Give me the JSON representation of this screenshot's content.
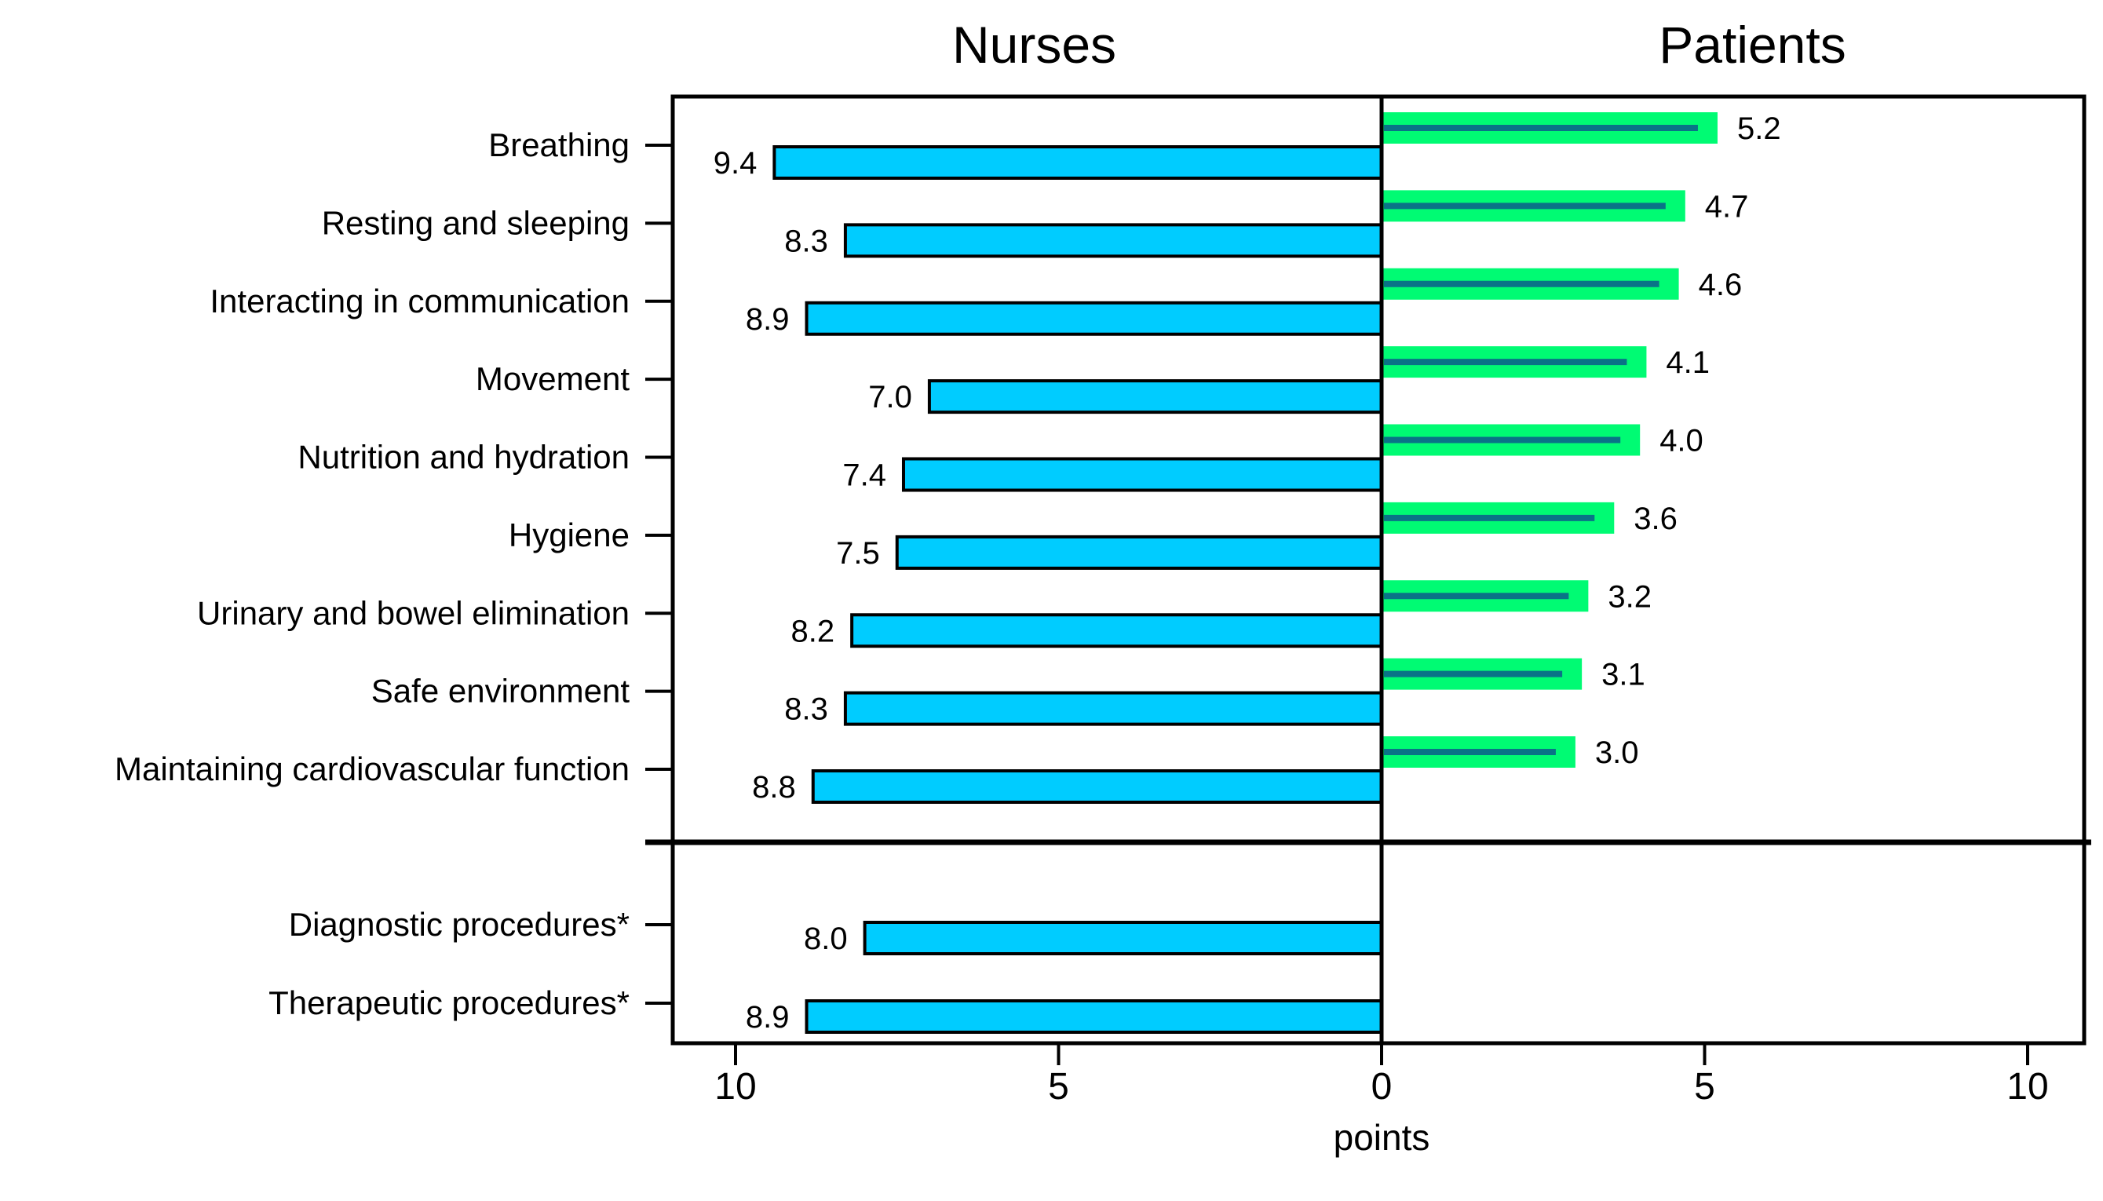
{
  "page": {
    "background": "#ffffff"
  },
  "titles": {
    "left": "Nurses",
    "right": "Patients"
  },
  "axis": {
    "xlabel": "points",
    "tick_labels": [
      "10",
      "5",
      "0",
      "5",
      "10"
    ],
    "tick_values": [
      -10,
      -5,
      0,
      5,
      10
    ],
    "xlim": [
      -11,
      11
    ]
  },
  "colors": {
    "nurses_bar": "#00ccff",
    "nurses_bar_outline": "#000000",
    "patients_bar": "#00fb73",
    "patients_inner_line": "#0a7387",
    "frame": "#000000",
    "text": "#000000"
  },
  "chart_data": {
    "type": "bar",
    "variant": "diverging-horizontal",
    "left_series": "Nurses",
    "right_series": "Patients",
    "xlabel": "points",
    "xlim": [
      -11,
      11
    ],
    "value_decimals": 1,
    "groups": [
      {
        "label": "Breathing",
        "nurses": 9.4,
        "patients": 5.2,
        "section": "needs"
      },
      {
        "label": "Resting and sleeping",
        "nurses": 8.3,
        "patients": 4.7,
        "section": "needs"
      },
      {
        "label": "Interacting in communication",
        "nurses": 8.9,
        "patients": 4.6,
        "section": "needs"
      },
      {
        "label": "Movement",
        "nurses": 7.0,
        "patients": 4.1,
        "section": "needs"
      },
      {
        "label": "Nutrition and hydration",
        "nurses": 7.4,
        "patients": 4.0,
        "section": "needs"
      },
      {
        "label": "Hygiene",
        "nurses": 7.5,
        "patients": 3.6,
        "section": "needs"
      },
      {
        "label": "Urinary and bowel elimination",
        "nurses": 8.2,
        "patients": 3.2,
        "section": "needs"
      },
      {
        "label": "Safe environment",
        "nurses": 8.3,
        "patients": 3.1,
        "section": "needs"
      },
      {
        "label": "Maintaining cardiovascular function",
        "nurses": 8.8,
        "patients": 3.0,
        "section": "needs"
      },
      {
        "label": "Diagnostic procedures*",
        "nurses": 8.0,
        "patients": null,
        "section": "procedures"
      },
      {
        "label": "Therapeutic procedures*",
        "nurses": 8.9,
        "patients": null,
        "section": "procedures"
      }
    ]
  }
}
